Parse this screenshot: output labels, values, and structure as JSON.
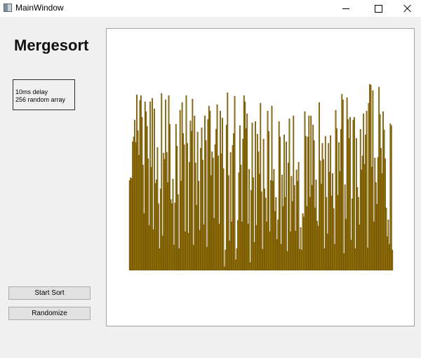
{
  "window": {
    "title": "MainWindow"
  },
  "heading": "Mergesort",
  "info": {
    "line1": "10ms delay",
    "line2": "256 random array"
  },
  "buttons": {
    "start": "Start Sort",
    "randomize": "Randomize"
  },
  "icons": {
    "app": "app-icon",
    "minimize": "minimize-icon",
    "maximize": "maximize-icon",
    "close": "close-icon"
  },
  "colors": {
    "bar_fill": "#9a7400",
    "bar_edge": "#4a3a10",
    "canvas_bg": "#ffffff"
  },
  "chart_data": {
    "type": "bar",
    "title": "",
    "xlabel": "",
    "ylabel": "",
    "count": 256,
    "ylim": [
      0,
      265
    ],
    "values": [
      128,
      132,
      131,
      183,
      190,
      214,
      182,
      250,
      199,
      164,
      242,
      249,
      218,
      150,
      81,
      240,
      226,
      205,
      159,
      64,
      240,
      147,
      245,
      58,
      230,
      124,
      129,
      175,
      95,
      31,
      116,
      252,
      49,
      167,
      158,
      243,
      168,
      125,
      249,
      208,
      101,
      95,
      130,
      36,
      96,
      208,
      177,
      108,
      31,
      228,
      127,
      239,
      195,
      179,
      55,
      249,
      181,
      53,
      154,
      213,
      198,
      244,
      36,
      220,
      153,
      93,
      197,
      127,
      57,
      174,
      203,
      157,
      65,
      220,
      185,
      33,
      215,
      234,
      227,
      135,
      169,
      160,
      74,
      179,
      201,
      236,
      163,
      66,
      227,
      166,
      217,
      145,
      5,
      29,
      207,
      253,
      135,
      42,
      168,
      69,
      178,
      195,
      248,
      15,
      31,
      71,
      139,
      206,
      150,
      69,
      187,
      249,
      240,
      202,
      223,
      66,
      144,
      11,
      114,
      210,
      132,
      40,
      212,
      64,
      194,
      169,
      137,
      238,
      112,
      30,
      187,
      116,
      103,
      69,
      227,
      198,
      55,
      128,
      234,
      127,
      144,
      84,
      104,
      44,
      72,
      212,
      190,
      37,
      136,
      91,
      193,
      104,
      183,
      27,
      153,
      216,
      55,
      134,
      98,
      220,
      121,
      56,
      143,
      127,
      154,
      30,
      61,
      29,
      81,
      76,
      226,
      191,
      91,
      190,
      220,
      104,
      220,
      121,
      207,
      185,
      89,
      129,
      70,
      63,
      239,
      156,
      123,
      181,
      158,
      31,
      191,
      104,
      52,
      181,
      140,
      192,
      106,
      138,
      88,
      37,
      228,
      202,
      107,
      182,
      141,
      201,
      251,
      243,
      24,
      122,
      73,
      246,
      215,
      188,
      218,
      43,
      102,
      214,
      218,
      31,
      188,
      118,
      104,
      65,
      201,
      143,
      163,
      223,
      151,
      193,
      227,
      32,
      238,
      265,
      264,
      147,
      256,
      69,
      160,
      125,
      94,
      161,
      261,
      222,
      174,
      138,
      226,
      200,
      159,
      89,
      48,
      72,
      37,
      209,
      206,
      29
    ]
  }
}
